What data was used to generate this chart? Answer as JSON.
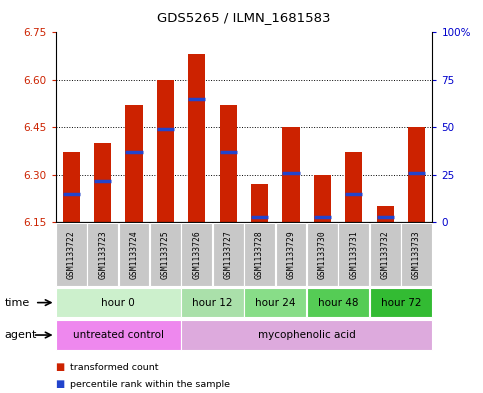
{
  "title": "GDS5265 / ILMN_1681583",
  "samples": [
    "GSM1133722",
    "GSM1133723",
    "GSM1133724",
    "GSM1133725",
    "GSM1133726",
    "GSM1133727",
    "GSM1133728",
    "GSM1133729",
    "GSM1133730",
    "GSM1133731",
    "GSM1133732",
    "GSM1133733"
  ],
  "bar_bottom": 6.15,
  "bar_tops": [
    6.37,
    6.4,
    6.52,
    6.6,
    6.68,
    6.52,
    6.27,
    6.45,
    6.3,
    6.37,
    6.2,
    6.45
  ],
  "blue_values": [
    6.24,
    6.28,
    6.37,
    6.445,
    6.54,
    6.37,
    6.165,
    6.305,
    6.165,
    6.24,
    6.165,
    6.305
  ],
  "ylim_left": [
    6.15,
    6.75
  ],
  "ylim_right": [
    0,
    100
  ],
  "yticks_left": [
    6.15,
    6.3,
    6.45,
    6.6,
    6.75
  ],
  "yticks_right": [
    0,
    25,
    50,
    75,
    100
  ],
  "ytick_labels_right": [
    "0",
    "25",
    "50",
    "75",
    "100%"
  ],
  "bar_color": "#cc2200",
  "blue_color": "#2244cc",
  "time_groups": [
    {
      "label": "hour 0",
      "start": 0,
      "end": 3,
      "color": "#ccf0cc"
    },
    {
      "label": "hour 12",
      "start": 4,
      "end": 5,
      "color": "#aae0aa"
    },
    {
      "label": "hour 24",
      "start": 6,
      "end": 7,
      "color": "#88dd88"
    },
    {
      "label": "hour 48",
      "start": 8,
      "end": 9,
      "color": "#55cc55"
    },
    {
      "label": "hour 72",
      "start": 10,
      "end": 11,
      "color": "#33bb33"
    }
  ],
  "agent_groups": [
    {
      "label": "untreated control",
      "start": 0,
      "end": 3,
      "color": "#ee88ee"
    },
    {
      "label": "mycophenolic acid",
      "start": 4,
      "end": 11,
      "color": "#ddaadd"
    }
  ],
  "bar_width": 0.55,
  "background_color": "#ffffff",
  "left_tick_color": "#cc2200",
  "right_tick_color": "#0000cc",
  "sample_bg_color": "#c8c8c8",
  "border_color": "#000000"
}
